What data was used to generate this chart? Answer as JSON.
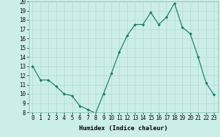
{
  "x": [
    0,
    1,
    2,
    3,
    4,
    5,
    6,
    7,
    8,
    9,
    10,
    11,
    12,
    13,
    14,
    15,
    16,
    17,
    18,
    19,
    20,
    21,
    22,
    23
  ],
  "y": [
    13.0,
    11.5,
    11.5,
    10.8,
    10.0,
    9.8,
    8.7,
    8.3,
    7.9,
    10.0,
    12.2,
    14.5,
    16.3,
    17.5,
    17.5,
    18.8,
    17.5,
    18.3,
    19.8,
    17.2,
    16.5,
    14.0,
    11.2,
    9.9
  ],
  "xlim": [
    -0.5,
    23.5
  ],
  "ylim": [
    8,
    20
  ],
  "yticks": [
    8,
    9,
    10,
    11,
    12,
    13,
    14,
    15,
    16,
    17,
    18,
    19,
    20
  ],
  "xticks": [
    0,
    1,
    2,
    3,
    4,
    5,
    6,
    7,
    8,
    9,
    10,
    11,
    12,
    13,
    14,
    15,
    16,
    17,
    18,
    19,
    20,
    21,
    22,
    23
  ],
  "xlabel": "Humidex (Indice chaleur)",
  "line_color": "#1a7a6e",
  "marker": "D",
  "marker_size": 1.8,
  "bg_color": "#cceee8",
  "grid_color": "#b0d8d0",
  "label_fontsize": 6.5,
  "tick_fontsize": 5.5
}
